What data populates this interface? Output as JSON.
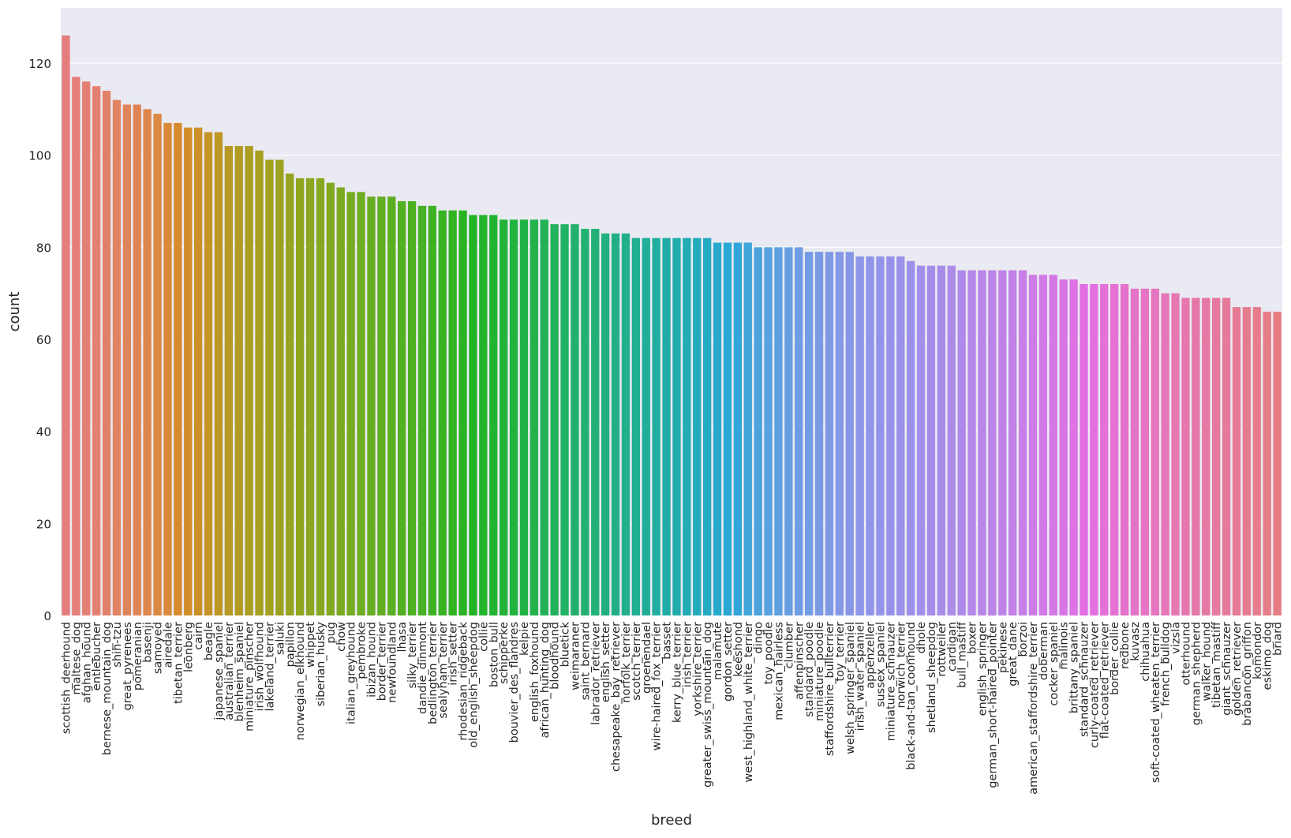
{
  "chart_data": {
    "type": "bar",
    "title": "",
    "xlabel": "breed",
    "ylabel": "count",
    "ylim": [
      0,
      132
    ],
    "yticks": [
      0,
      20,
      40,
      60,
      80,
      100,
      120
    ],
    "grid": "horizontal",
    "background": "#eaeaf2",
    "palette": "husl",
    "categories": [
      "scottish_deerhound",
      "maltese_dog",
      "afghan_hound",
      "entlebucher",
      "bernese_mountain_dog",
      "shih-tzu",
      "great_pyrenees",
      "pomeranian",
      "basenji",
      "samoyed",
      "airedale",
      "tibetan_terrier",
      "leonberg",
      "cairn",
      "beagle",
      "japanese_spaniel",
      "australian_terrier",
      "blenheim_spaniel",
      "miniature_pinscher",
      "irish_wolfhound",
      "lakeland_terrier",
      "saluki",
      "papillon",
      "norwegian_elkhound",
      "whippet",
      "siberian_husky",
      "pug",
      "chow",
      "italian_greyhound",
      "pembroke",
      "ibizan_hound",
      "border_terrier",
      "newfoundland",
      "lhasa",
      "silky_terrier",
      "dandie_dinmont",
      "bedlington_terrier",
      "sealyham_terrier",
      "irish_setter",
      "rhodesian_ridgeback",
      "old_english_sheepdog",
      "collie",
      "boston_bull",
      "schipperke",
      "bouvier_des_flandres",
      "kelpie",
      "english_foxhound",
      "african_hunting_dog",
      "bloodhound",
      "bluetick",
      "weimaraner",
      "saint_bernard",
      "labrador_retriever",
      "english_setter",
      "chesapeake_bay_retriever",
      "norfolk_terrier",
      "scotch_terrier",
      "groenendael",
      "wire-haired_fox_terrier",
      "basset",
      "kerry_blue_terrier",
      "irish_terrier",
      "yorkshire_terrier",
      "greater_swiss_mountain_dog",
      "malamute",
      "gordon_setter",
      "keeshond",
      "west_highland_white_terrier",
      "dingo",
      "toy_poodle",
      "mexican_hairless",
      "clumber",
      "affenpinscher",
      "standard_poodle",
      "miniature_poodle",
      "staffordshire_bullterrier",
      "toy_terrier",
      "welsh_springer_spaniel",
      "irish_water_spaniel",
      "appenzeller",
      "sussex_spaniel",
      "miniature_schnauzer",
      "norwich_terrier",
      "black-and-tan_coonhound",
      "dhole",
      "shetland_sheepdog",
      "rottweiler",
      "cardigan",
      "bull_mastiff",
      "boxer",
      "english_springer",
      "german_short-haired_pointer",
      "pekinese",
      "great_dane",
      "borzoi",
      "american_staffordshire_terrier",
      "doberman",
      "cocker_spaniel",
      "malinois",
      "brittany_spaniel",
      "standard_schnauzer",
      "curly-coated_retriever",
      "flat-coated_retriever",
      "border_collie",
      "redbone",
      "kuvasz",
      "chihuahua",
      "soft-coated_wheaten_terrier",
      "french_bulldog",
      "vizsla",
      "otterhound",
      "german_shepherd",
      "walker_hound",
      "tibetan_mastiff",
      "giant_schnauzer",
      "golden_retriever",
      "brabancon_griffon",
      "komondor",
      "eskimo_dog",
      "briard"
    ],
    "values": [
      126,
      117,
      116,
      115,
      114,
      112,
      111,
      111,
      110,
      109,
      107,
      107,
      106,
      106,
      105,
      105,
      102,
      102,
      102,
      101,
      99,
      99,
      96,
      95,
      95,
      95,
      94,
      93,
      92,
      92,
      91,
      91,
      91,
      90,
      90,
      89,
      89,
      88,
      88,
      88,
      87,
      87,
      87,
      86,
      86,
      86,
      86,
      86,
      85,
      85,
      85,
      84,
      84,
      83,
      83,
      83,
      82,
      82,
      82,
      82,
      82,
      82,
      82,
      82,
      81,
      81,
      81,
      81,
      80,
      80,
      80,
      80,
      80,
      79,
      79,
      79,
      79,
      79,
      78,
      78,
      78,
      78,
      78,
      77,
      76,
      76,
      76,
      76,
      75,
      75,
      75,
      75,
      75,
      75,
      75,
      74,
      74,
      74,
      73,
      73,
      72,
      72,
      72,
      72,
      72,
      71,
      71,
      71,
      70,
      70,
      69,
      69,
      69,
      69,
      69,
      67,
      67,
      67,
      66,
      66
    ]
  }
}
